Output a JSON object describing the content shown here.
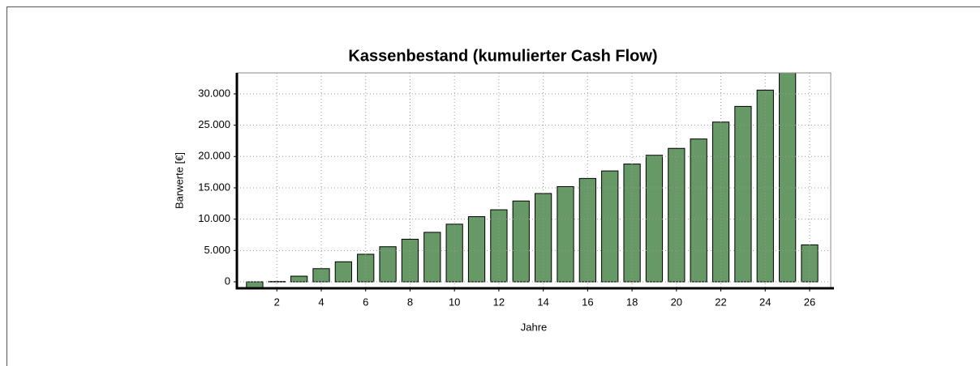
{
  "chart_data": {
    "type": "bar",
    "title": "Kassenbestand (kumulierter Cash Flow)",
    "x_label": "Jahre",
    "y_label": "Barwerte [€]",
    "x": [
      1,
      2,
      3,
      4,
      5,
      6,
      7,
      8,
      9,
      10,
      11,
      12,
      13,
      14,
      15,
      16,
      17,
      18,
      19,
      20,
      21,
      22,
      23,
      24,
      25,
      26
    ],
    "values": [
      -1000,
      50,
      900,
      2100,
      3200,
      4400,
      5600,
      6800,
      7900,
      9200,
      10400,
      11500,
      12900,
      14100,
      15200,
      16500,
      17700,
      18800,
      20200,
      21300,
      22800,
      25500,
      28000,
      30600,
      33400,
      5900
    ],
    "color": "#669966",
    "xlim": [
      0.2,
      26.95
    ],
    "xticks": [
      2,
      4,
      6,
      8,
      10,
      12,
      14,
      16,
      18,
      20,
      22,
      24,
      26
    ],
    "ylim": [
      -1030,
      33350
    ],
    "yticks": [
      0,
      {
        "value": 5000,
        "label": "5.000"
      },
      {
        "value": 10000,
        "label": "10.000"
      },
      {
        "value": 15000,
        "label": "15.000"
      },
      {
        "value": 20000,
        "label": "20.000"
      },
      {
        "value": 25000,
        "label": "25.000"
      },
      {
        "value": 30000,
        "label": "30.000"
      }
    ],
    "grid": true
  }
}
